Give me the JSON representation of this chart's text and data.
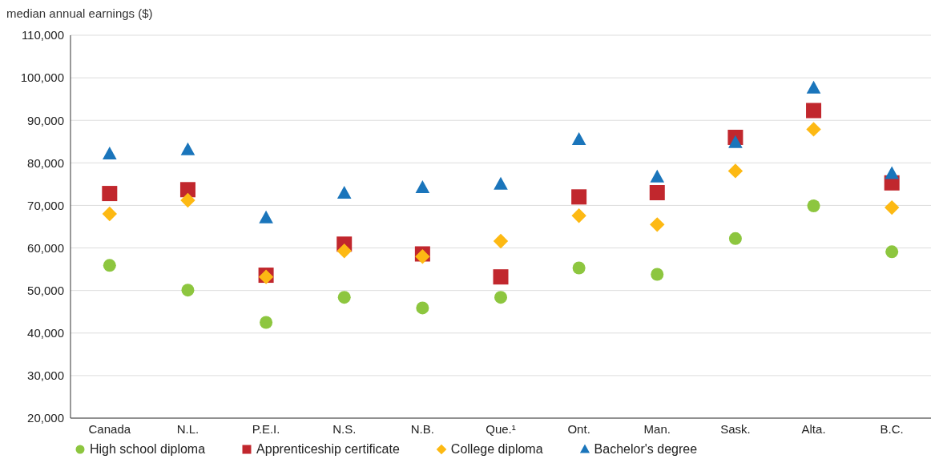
{
  "chart_data": {
    "type": "scatter",
    "ylabel": "median annual earnings ($)",
    "categories": [
      "Canada",
      "N.L.",
      "P.E.I.",
      "N.S.",
      "N.B.",
      "Que.¹",
      "Ont.",
      "Man.",
      "Sask.",
      "Alta.",
      "B.C."
    ],
    "series": [
      {
        "name": "High school diploma",
        "color": "#8dc63f",
        "marker": "circle",
        "values": [
          55900,
          50100,
          42500,
          48400,
          45900,
          48400,
          55300,
          53800,
          62200,
          69900,
          59100
        ]
      },
      {
        "name": "Apprenticeship certificate",
        "color": "#c1272d",
        "marker": "square",
        "values": [
          72800,
          73700,
          53600,
          60900,
          58600,
          53200,
          72000,
          73000,
          86000,
          92300,
          75300
        ]
      },
      {
        "name": "College diploma",
        "color": "#fdb913",
        "marker": "diamond",
        "values": [
          68000,
          71200,
          53200,
          59300,
          58000,
          61600,
          67600,
          65500,
          78100,
          87900,
          69500
        ]
      },
      {
        "name": "Bachelor's degree",
        "color": "#1a75bb",
        "marker": "triangle",
        "values": [
          82000,
          83000,
          67000,
          72800,
          74100,
          74900,
          85400,
          76600,
          84700,
          97500,
          77400
        ]
      }
    ],
    "ylim": [
      20000,
      110000
    ],
    "yticks": [
      {
        "value": 20000,
        "label": "20,000"
      },
      {
        "value": 30000,
        "label": "30,000"
      },
      {
        "value": 40000,
        "label": "40,000"
      },
      {
        "value": 50000,
        "label": "50,000"
      },
      {
        "value": 60000,
        "label": "60,000"
      },
      {
        "value": 70000,
        "label": "70,000"
      },
      {
        "value": 80000,
        "label": "80,000"
      },
      {
        "value": 90000,
        "label": "90,000"
      },
      {
        "value": 100000,
        "label": "100,000"
      },
      {
        "value": 110000,
        "label": "110,000"
      }
    ],
    "grid": "y",
    "legend": "bottom"
  }
}
